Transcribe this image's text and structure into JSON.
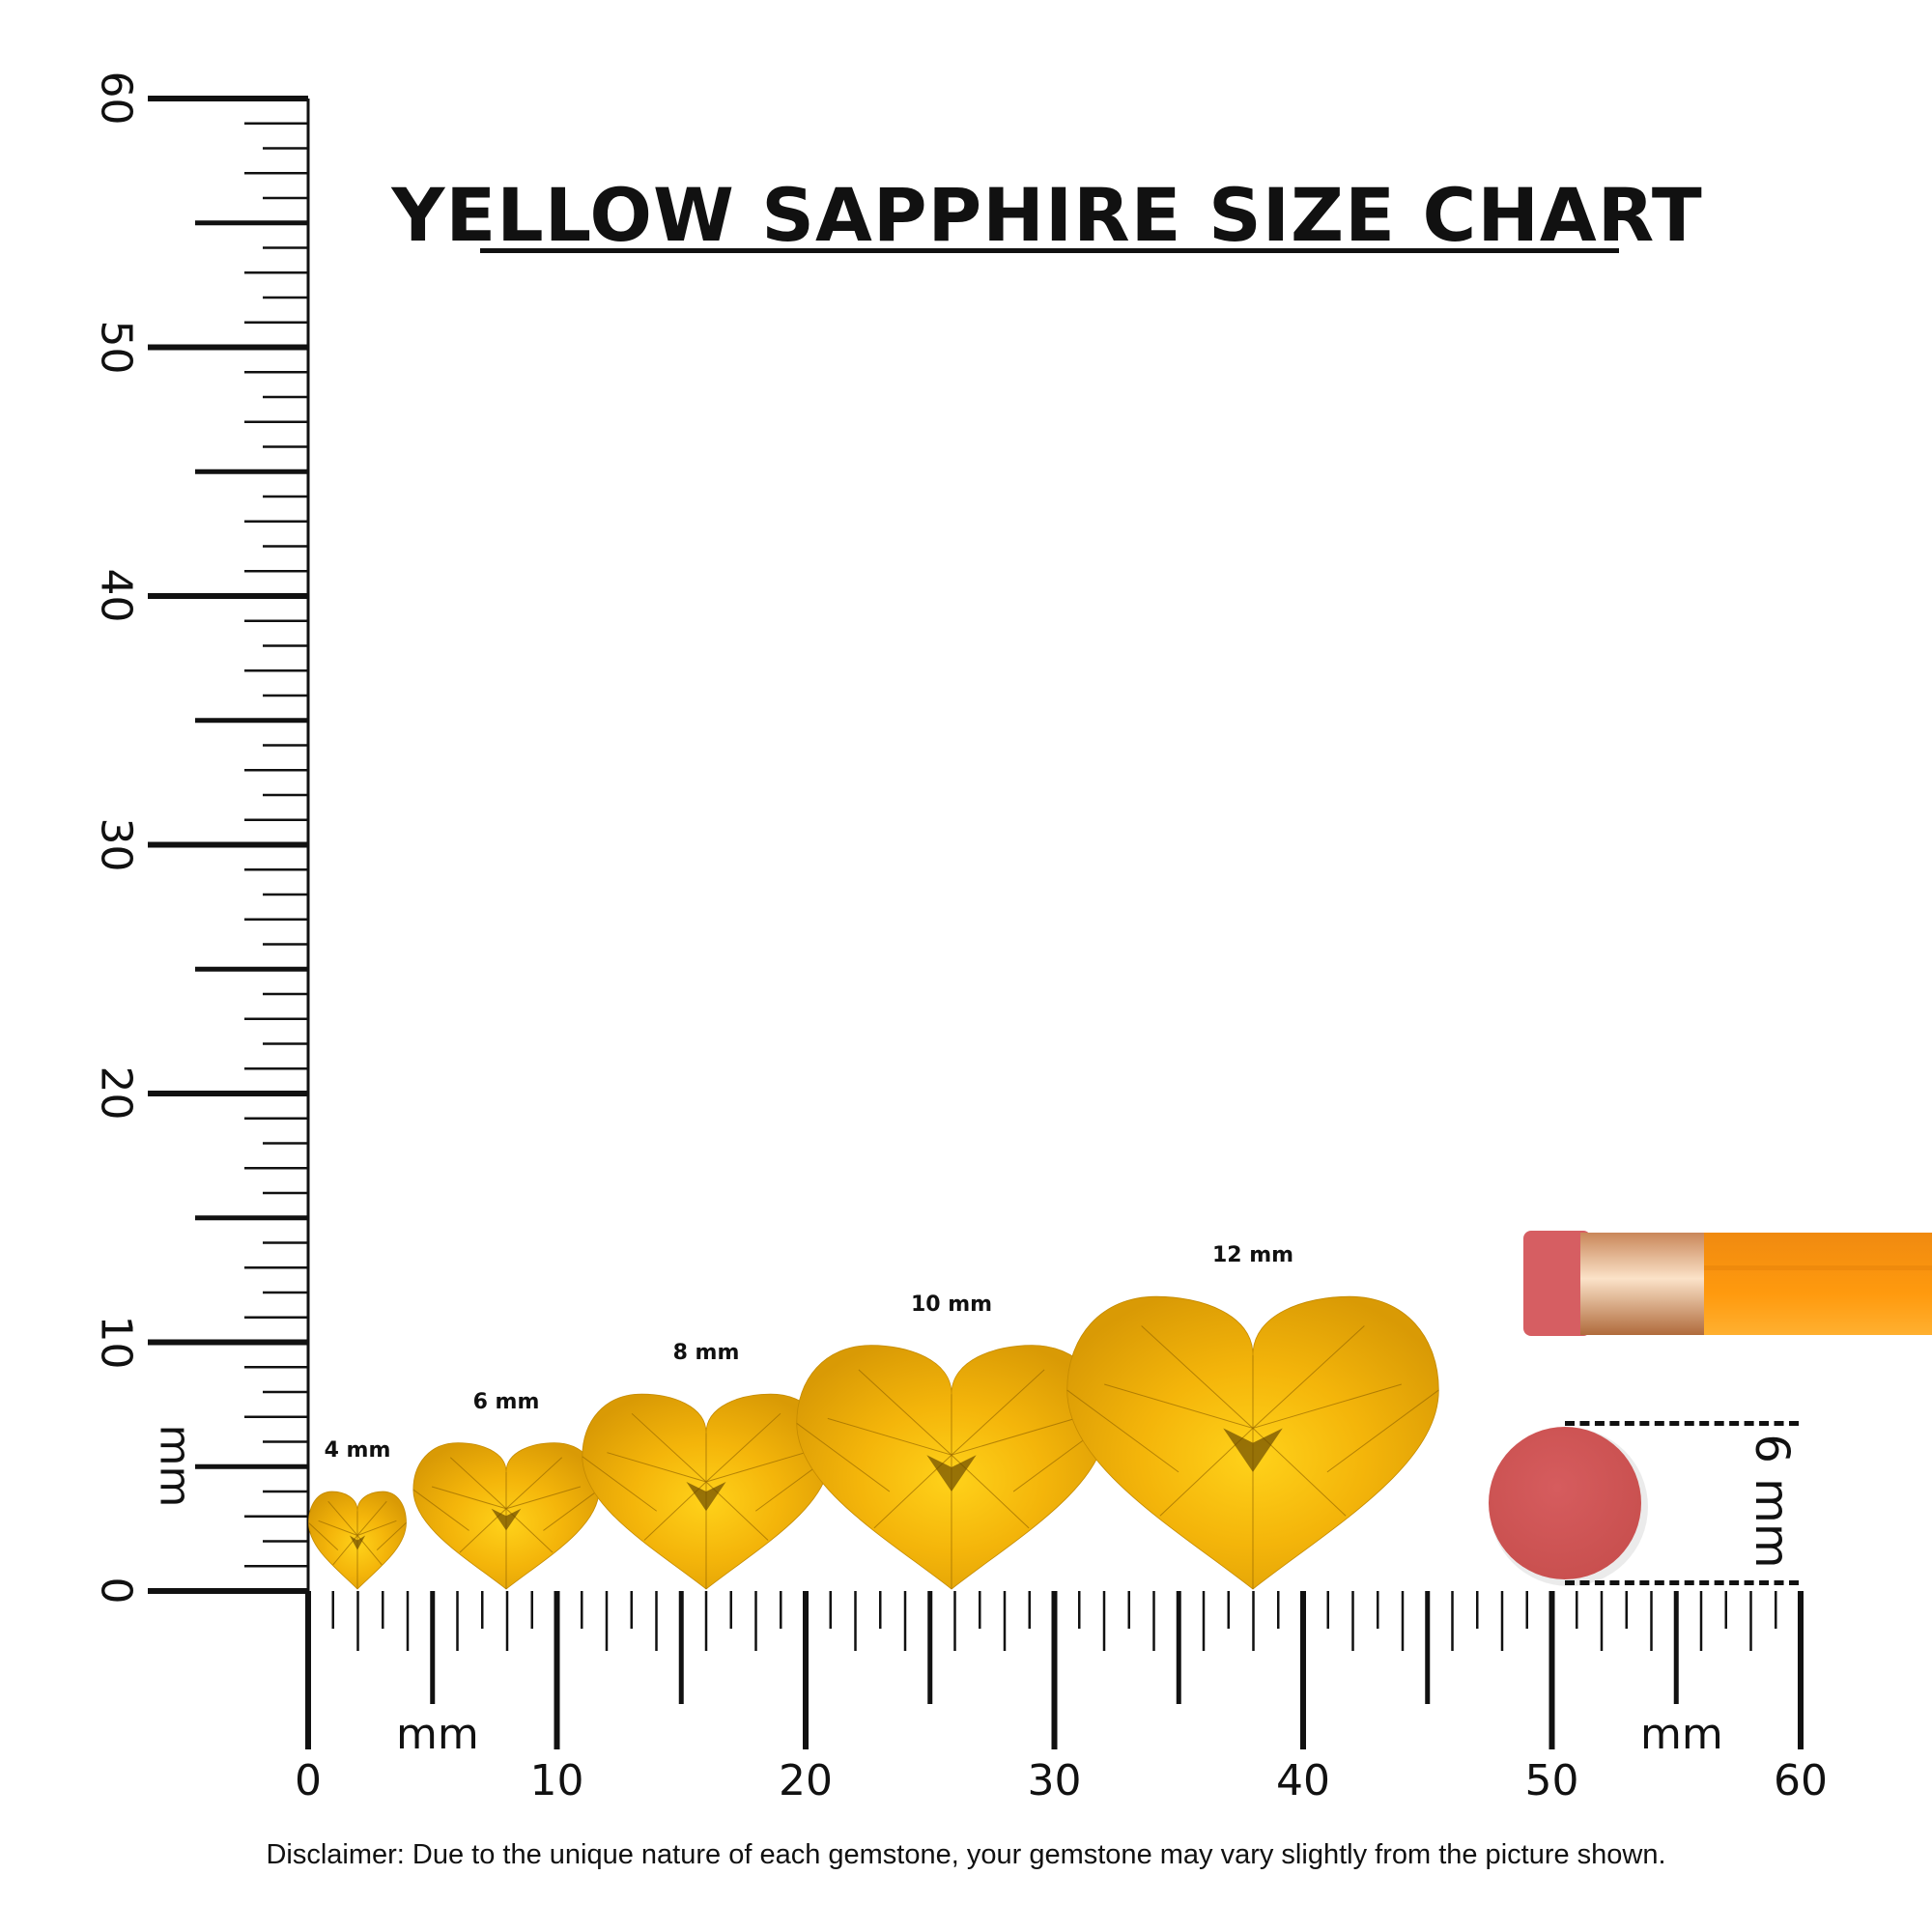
{
  "title": "YELLOW SAPPHIRE SIZE CHART",
  "disclaimer": "Disclaimer: Due to the unique nature of each gemstone, your gemstone may vary slightly from the picture shown.",
  "ruler": {
    "unit_label": "mm",
    "range_mm": [
      0,
      60
    ],
    "vertical_labels": [
      "0",
      "10",
      "20",
      "30",
      "40",
      "50",
      "60"
    ],
    "horizontal_labels": [
      "0",
      "10",
      "20",
      "30",
      "40",
      "50",
      "60"
    ]
  },
  "gems": [
    {
      "label": "4 mm",
      "size_mm": 4
    },
    {
      "label": "6 mm",
      "size_mm": 6
    },
    {
      "label": "8 mm",
      "size_mm": 8
    },
    {
      "label": "10 mm",
      "size_mm": 10
    },
    {
      "label": "12 mm",
      "size_mm": 12
    }
  ],
  "gem_color": "#F2B705",
  "reference": {
    "label": "6 mm",
    "object": "pencil eraser",
    "eraser_color": "#D1585A",
    "pencil_color": "#FF9A0E"
  }
}
